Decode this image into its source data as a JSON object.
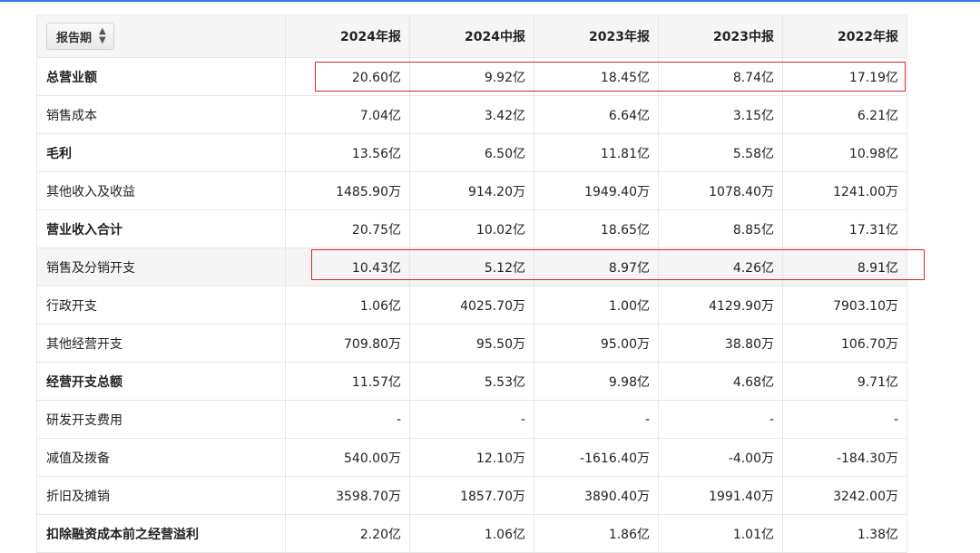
{
  "table": {
    "period_selector_label": "报告期",
    "period_icon": "sort-updown-icon",
    "columns": [
      "2024年报",
      "2024中报",
      "2023年报",
      "2023中报",
      "2022年报"
    ],
    "rows": [
      {
        "label": "总营业额",
        "bold": true,
        "values": [
          "20.60亿",
          "9.92亿",
          "18.45亿",
          "8.74亿",
          "17.19亿"
        ]
      },
      {
        "label": "销售成本",
        "bold": false,
        "values": [
          "7.04亿",
          "3.42亿",
          "6.64亿",
          "3.15亿",
          "6.21亿"
        ]
      },
      {
        "label": "毛利",
        "bold": true,
        "values": [
          "13.56亿",
          "6.50亿",
          "11.81亿",
          "5.58亿",
          "10.98亿"
        ]
      },
      {
        "label": "其他收入及收益",
        "bold": false,
        "values": [
          "1485.90万",
          "914.20万",
          "1949.40万",
          "1078.40万",
          "1241.00万"
        ]
      },
      {
        "label": "营业收入合计",
        "bold": true,
        "values": [
          "20.75亿",
          "10.02亿",
          "18.65亿",
          "8.85亿",
          "17.31亿"
        ]
      },
      {
        "label": "销售及分销开支",
        "bold": false,
        "values": [
          "10.43亿",
          "5.12亿",
          "8.97亿",
          "4.26亿",
          "8.91亿"
        ]
      },
      {
        "label": "行政开支",
        "bold": false,
        "values": [
          "1.06亿",
          "4025.70万",
          "1.00亿",
          "4129.90万",
          "7903.10万"
        ]
      },
      {
        "label": "其他经营开支",
        "bold": false,
        "values": [
          "709.80万",
          "95.50万",
          "95.00万",
          "38.80万",
          "106.70万"
        ]
      },
      {
        "label": "经营开支总额",
        "bold": true,
        "values": [
          "11.57亿",
          "5.53亿",
          "9.98亿",
          "4.68亿",
          "9.71亿"
        ]
      },
      {
        "label": "研发开支费用",
        "bold": false,
        "values": [
          "-",
          "-",
          "-",
          "-",
          "-"
        ]
      },
      {
        "label": "减值及拨备",
        "bold": false,
        "values": [
          "540.00万",
          "12.10万",
          "-1616.40万",
          "-4.00万",
          "-184.30万"
        ]
      },
      {
        "label": "折旧及摊销",
        "bold": false,
        "values": [
          "3598.70万",
          "1857.70万",
          "3890.40万",
          "1991.40万",
          "3242.00万"
        ]
      },
      {
        "label": "扣除融资成本前之经营溢利",
        "bold": true,
        "values": [
          "2.20亿",
          "1.06亿",
          "1.86亿",
          "1.01亿",
          "1.38亿"
        ]
      }
    ]
  },
  "colors": {
    "accent": "#2f7de1",
    "highlight_border": "#e02424",
    "header_bg": "#f5f5f5"
  }
}
